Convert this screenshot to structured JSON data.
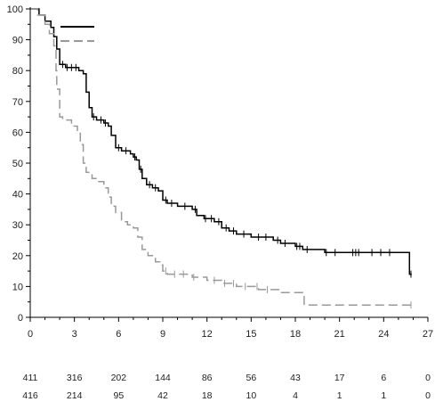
{
  "chart_data": {
    "type": "line",
    "title": "",
    "xlabel": "",
    "ylabel": "",
    "xlim": [
      0,
      27
    ],
    "ylim": [
      0,
      100
    ],
    "x_ticks": [
      0,
      3,
      6,
      9,
      12,
      15,
      18,
      21,
      24,
      27
    ],
    "y_ticks": [
      0,
      10,
      20,
      30,
      40,
      50,
      60,
      70,
      80,
      90,
      100
    ],
    "grid": false,
    "legend": {
      "placement": "top-left",
      "entries": [
        {
          "style": "solid",
          "color": "#000000",
          "label": ""
        },
        {
          "style": "dashed",
          "color": "#999999",
          "label": ""
        }
      ]
    },
    "series": [
      {
        "style": "solid",
        "color": "#000000",
        "points": [
          [
            0,
            100
          ],
          [
            0.6,
            98
          ],
          [
            1.0,
            96
          ],
          [
            1.4,
            94
          ],
          [
            1.6,
            91
          ],
          [
            1.8,
            87
          ],
          [
            2.0,
            82
          ],
          [
            2.4,
            81
          ],
          [
            3.0,
            81
          ],
          [
            3.3,
            80
          ],
          [
            3.6,
            79
          ],
          [
            3.8,
            73
          ],
          [
            4.0,
            68
          ],
          [
            4.2,
            65
          ],
          [
            4.5,
            64
          ],
          [
            5.0,
            63
          ],
          [
            5.3,
            62
          ],
          [
            5.5,
            59
          ],
          [
            5.8,
            55
          ],
          [
            6.2,
            54
          ],
          [
            6.8,
            53
          ],
          [
            7.0,
            52
          ],
          [
            7.2,
            51
          ],
          [
            7.4,
            48
          ],
          [
            7.6,
            45
          ],
          [
            7.9,
            43
          ],
          [
            8.3,
            42
          ],
          [
            8.7,
            41
          ],
          [
            9.0,
            38
          ],
          [
            9.3,
            37
          ],
          [
            10.0,
            36
          ],
          [
            11.0,
            35
          ],
          [
            11.3,
            33
          ],
          [
            11.8,
            32
          ],
          [
            12.5,
            31
          ],
          [
            13.0,
            29
          ],
          [
            13.5,
            28
          ],
          [
            14.0,
            27
          ],
          [
            15.0,
            26
          ],
          [
            16.5,
            25
          ],
          [
            17.0,
            24
          ],
          [
            18.0,
            23
          ],
          [
            18.5,
            22
          ],
          [
            20.0,
            21
          ],
          [
            25.7,
            21
          ],
          [
            25.75,
            14
          ],
          [
            25.9,
            14
          ]
        ],
        "censor_marks": [
          2.2,
          2.5,
          2.8,
          3.1,
          4.3,
          4.8,
          5.1,
          6.0,
          6.5,
          7.1,
          7.5,
          8.1,
          8.5,
          9.2,
          9.6,
          10.5,
          11.2,
          11.9,
          12.3,
          12.8,
          13.3,
          13.8,
          14.5,
          15.5,
          16.0,
          16.8,
          17.3,
          18.1,
          18.3,
          18.8,
          20.1,
          20.7,
          21.9,
          22.1,
          22.3,
          23.2,
          23.8,
          24.4,
          25.85
        ]
      },
      {
        "style": "dashed",
        "color": "#999999",
        "points": [
          [
            0,
            100
          ],
          [
            0.5,
            98
          ],
          [
            1.0,
            95
          ],
          [
            1.3,
            92
          ],
          [
            1.6,
            88
          ],
          [
            1.75,
            80
          ],
          [
            1.8,
            74
          ],
          [
            2.0,
            65
          ],
          [
            2.2,
            64
          ],
          [
            2.8,
            62
          ],
          [
            3.2,
            60
          ],
          [
            3.4,
            56
          ],
          [
            3.6,
            50
          ],
          [
            3.8,
            47
          ],
          [
            4.2,
            45
          ],
          [
            4.6,
            44
          ],
          [
            5.0,
            42
          ],
          [
            5.3,
            39
          ],
          [
            5.5,
            36
          ],
          [
            5.8,
            34
          ],
          [
            6.2,
            31
          ],
          [
            6.6,
            30
          ],
          [
            7.0,
            29
          ],
          [
            7.3,
            26
          ],
          [
            7.6,
            22
          ],
          [
            8.0,
            20
          ],
          [
            8.5,
            18
          ],
          [
            8.8,
            17
          ],
          [
            9.0,
            15
          ],
          [
            9.3,
            14
          ],
          [
            10.0,
            14
          ],
          [
            11.0,
            13
          ],
          [
            12.0,
            12
          ],
          [
            13.0,
            11
          ],
          [
            14.0,
            10
          ],
          [
            15.5,
            9
          ],
          [
            17.0,
            8
          ],
          [
            18.5,
            7
          ],
          [
            18.6,
            4
          ],
          [
            25.9,
            4
          ]
        ],
        "censor_marks": [
          9.2,
          9.8,
          10.4,
          11.1,
          12.5,
          13.2,
          13.8,
          14.6,
          15.4,
          16.1,
          25.85
        ]
      }
    ],
    "risk_table": [
      {
        "row": "solid",
        "counts": [
          "411",
          "316",
          "202",
          "144",
          "86",
          "56",
          "43",
          "17",
          "6",
          "0"
        ]
      },
      {
        "row": "dashed",
        "counts": [
          "416",
          "214",
          "95",
          "42",
          "18",
          "10",
          "4",
          "1",
          "1",
          "0"
        ]
      }
    ]
  }
}
